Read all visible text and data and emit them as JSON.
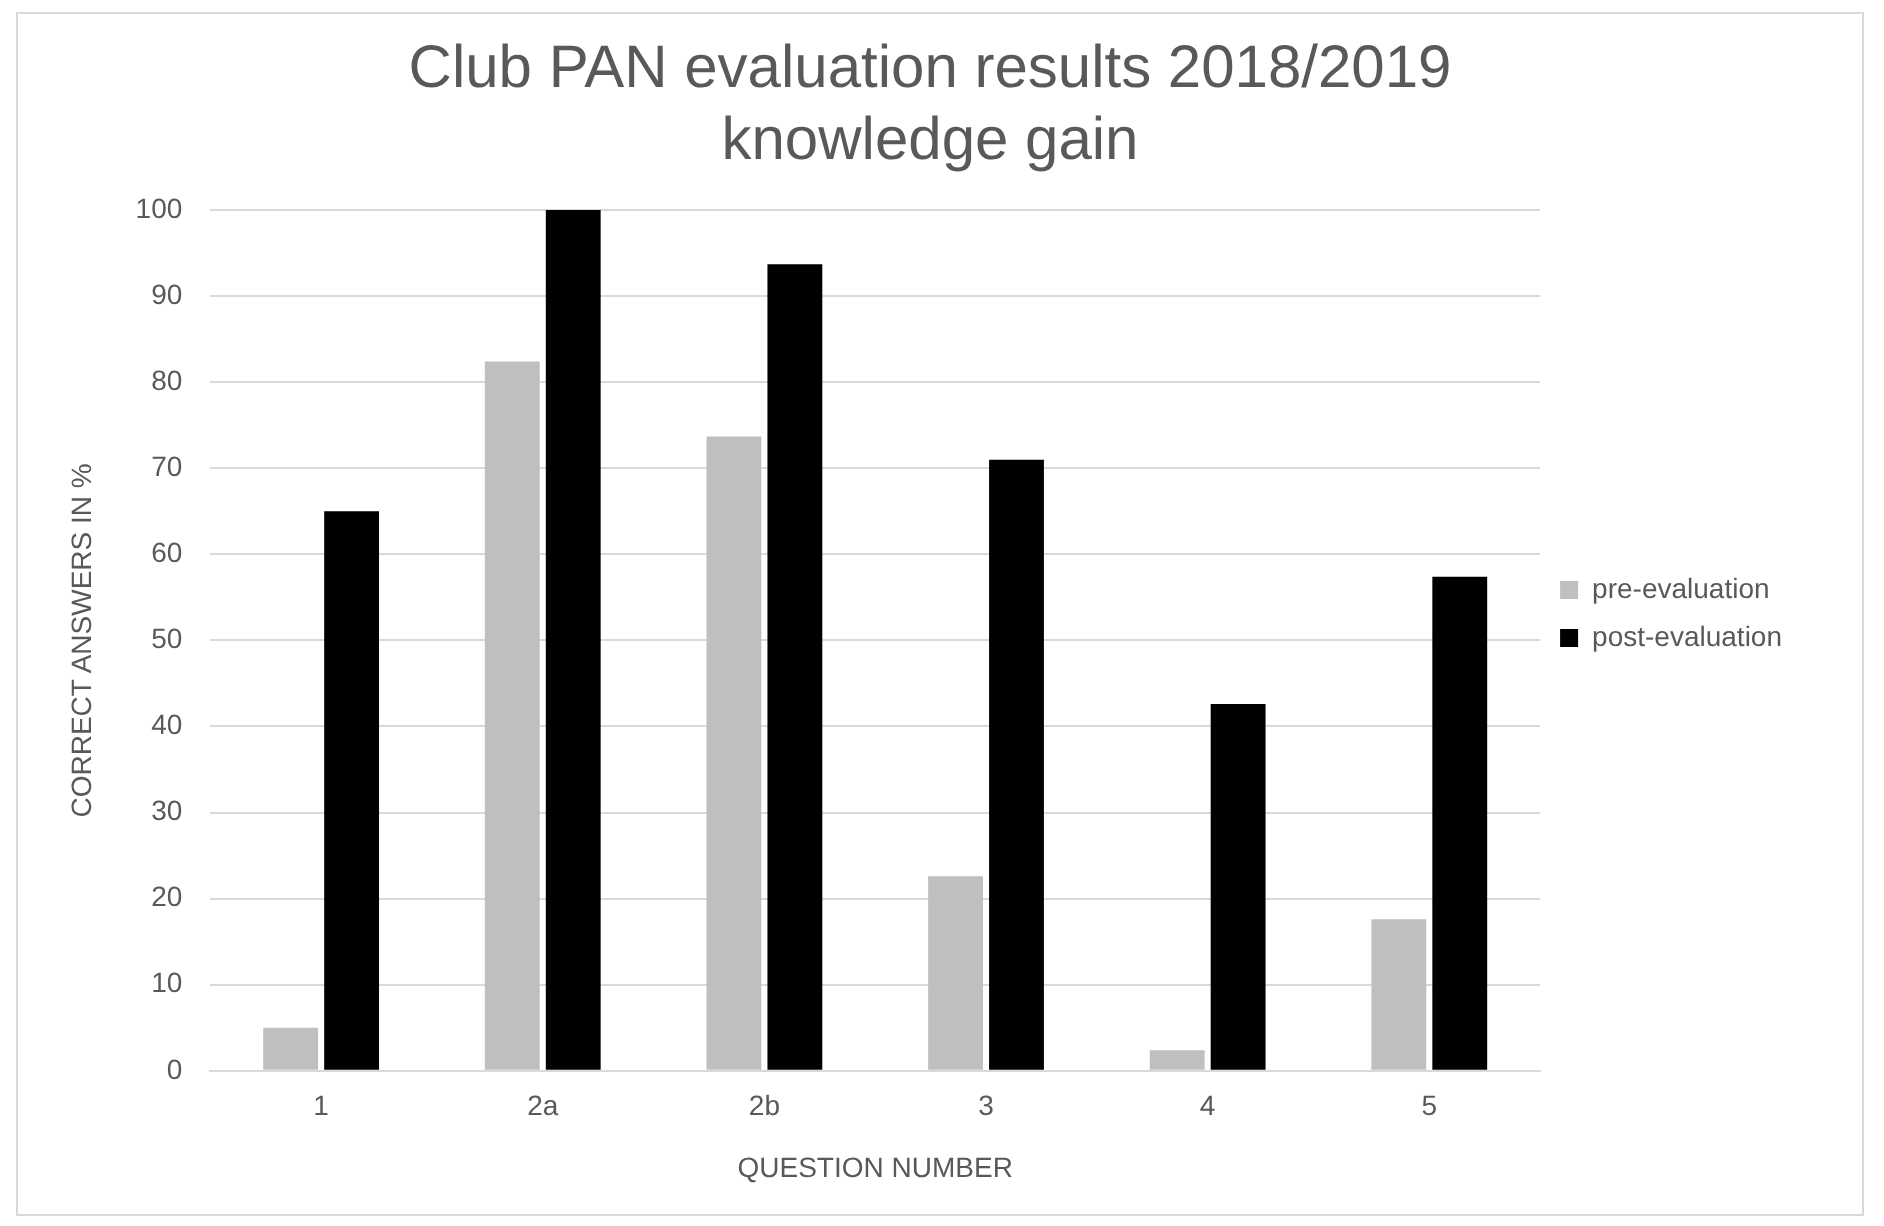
{
  "chart_data": {
    "type": "bar",
    "title": "Club PAN evaluation results 2018/2019\nknowledge gain",
    "xlabel": "QUESTION NUMBER",
    "ylabel": "CORRECT ANSWERS IN %",
    "categories": [
      "1",
      "2a",
      "2b",
      "3",
      "4",
      "5"
    ],
    "series": [
      {
        "name": "pre-evaluation",
        "color": "#bfbfbf",
        "values": [
          5,
          82.4,
          73.7,
          22.6,
          2.4,
          17.6
        ]
      },
      {
        "name": "post-evaluation",
        "color": "#000000",
        "values": [
          65,
          100,
          93.7,
          71,
          42.6,
          57.4
        ]
      }
    ],
    "ylim": [
      0,
      100
    ],
    "yticks": [
      0,
      10,
      20,
      30,
      40,
      50,
      60,
      70,
      80,
      90,
      100
    ],
    "grid": "y",
    "legend": "right"
  }
}
